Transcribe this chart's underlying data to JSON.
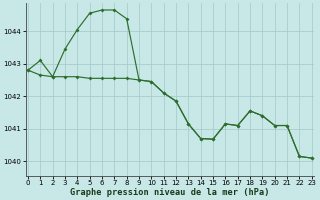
{
  "title": "Graphe pression niveau de la mer (hPa)",
  "bg_color": "#c8e8e8",
  "line_color": "#2d6e2d",
  "grid_color": "#a8cccc",
  "xlim": [
    -0.2,
    23.2
  ],
  "ylim": [
    1039.55,
    1044.85
  ],
  "yticks": [
    1040,
    1041,
    1042,
    1043,
    1044
  ],
  "xticks": [
    0,
    1,
    2,
    3,
    4,
    5,
    6,
    7,
    8,
    9,
    10,
    11,
    12,
    13,
    14,
    15,
    16,
    17,
    18,
    19,
    20,
    21,
    22,
    23
  ],
  "line1_x": [
    0,
    1,
    2,
    3,
    4,
    5,
    6,
    7,
    8,
    9,
    10,
    11,
    12,
    13,
    14,
    15,
    16,
    17,
    18,
    19,
    20,
    21,
    22,
    23
  ],
  "line1_y": [
    1042.8,
    1043.1,
    1042.6,
    1043.45,
    1044.05,
    1044.55,
    1044.65,
    1044.65,
    1044.38,
    1042.5,
    1042.45,
    1042.1,
    1041.85,
    1041.15,
    1040.7,
    1040.68,
    1041.15,
    1041.1,
    1041.55,
    1041.4,
    1041.1,
    1041.1,
    1040.15,
    1040.1
  ],
  "line2_x": [
    0,
    1,
    2,
    3,
    4,
    5,
    6,
    7,
    8,
    9,
    10,
    11,
    12,
    13,
    14,
    15,
    16,
    17,
    18,
    19,
    20,
    21,
    22,
    23
  ],
  "line2_y": [
    1042.8,
    1042.65,
    1042.6,
    1042.6,
    1042.6,
    1042.55,
    1042.55,
    1042.55,
    1042.55,
    1042.5,
    1042.45,
    1042.1,
    1041.85,
    1041.15,
    1040.7,
    1040.68,
    1041.15,
    1041.1,
    1041.55,
    1041.4,
    1041.1,
    1041.1,
    1040.15,
    1040.1
  ],
  "marker_size": 2.0,
  "line_width": 0.85,
  "tick_fontsize": 5.0,
  "label_fontsize": 6.2,
  "spine_color": "#444444"
}
